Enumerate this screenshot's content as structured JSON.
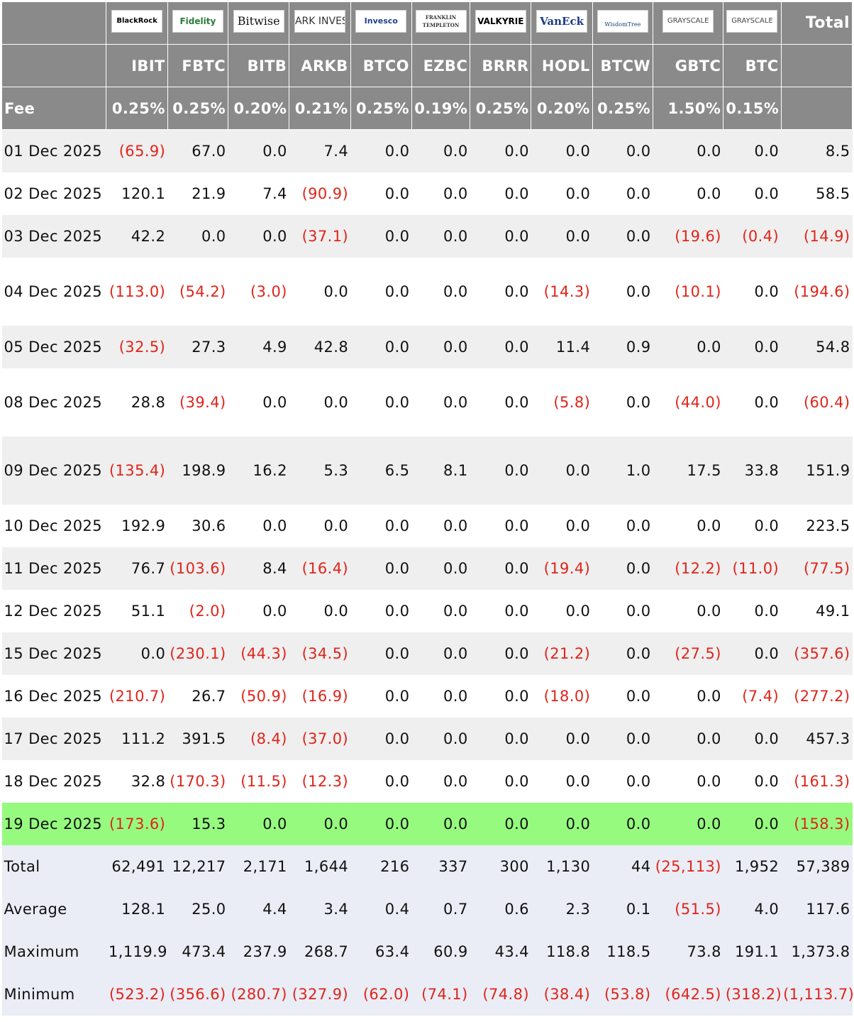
{
  "header": {
    "logos": [
      "BlackRock",
      "Fidelity",
      "Bitwise",
      "ARK INVEST",
      "Invesco",
      "FRANKLIN TEMPLETON",
      "VALKYRIE",
      "VanEck",
      "WisdomTree",
      "GRAYSCALE",
      "GRAYSCALE"
    ],
    "total_label": "Total",
    "tickers": [
      "IBIT",
      "FBTC",
      "BITB",
      "ARKB",
      "BTCO",
      "EZBC",
      "BRRR",
      "HODL",
      "BTCW",
      "GBTC",
      "BTC"
    ],
    "fee_label": "Fee",
    "fees": [
      "0.25%",
      "0.25%",
      "0.20%",
      "0.21%",
      "0.25%",
      "0.19%",
      "0.25%",
      "0.20%",
      "0.25%",
      "1.50%",
      "0.15%"
    ]
  },
  "rows": [
    {
      "date": "01 Dec 2025",
      "values": [
        "(65.9)",
        "67.0",
        "0.0",
        "7.4",
        "0.0",
        "0.0",
        "0.0",
        "0.0",
        "0.0",
        "0.0",
        "0.0",
        "8.5"
      ]
    },
    {
      "date": "02 Dec 2025",
      "values": [
        "120.1",
        "21.9",
        "7.4",
        "(90.9)",
        "0.0",
        "0.0",
        "0.0",
        "0.0",
        "0.0",
        "0.0",
        "0.0",
        "58.5"
      ]
    },
    {
      "date": "03 Dec 2025",
      "values": [
        "42.2",
        "0.0",
        "0.0",
        "(37.1)",
        "0.0",
        "0.0",
        "0.0",
        "0.0",
        "0.0",
        "(19.6)",
        "(0.4)",
        "(14.9)"
      ]
    },
    {
      "date": "04 Dec 2025",
      "values": [
        "(113.0)",
        "(54.2)",
        "(3.0)",
        "0.0",
        "0.0",
        "0.0",
        "0.0",
        "(14.3)",
        "0.0",
        "(10.1)",
        "0.0",
        "(194.6)"
      ]
    },
    {
      "date": "05 Dec 2025",
      "values": [
        "(32.5)",
        "27.3",
        "4.9",
        "42.8",
        "0.0",
        "0.0",
        "0.0",
        "11.4",
        "0.9",
        "0.0",
        "0.0",
        "54.8"
      ]
    },
    {
      "date": "08 Dec 2025",
      "values": [
        "28.8",
        "(39.4)",
        "0.0",
        "0.0",
        "0.0",
        "0.0",
        "0.0",
        "(5.8)",
        "0.0",
        "(44.0)",
        "0.0",
        "(60.4)"
      ]
    },
    {
      "date": "09 Dec 2025",
      "values": [
        "(135.4)",
        "198.9",
        "16.2",
        "5.3",
        "6.5",
        "8.1",
        "0.0",
        "0.0",
        "1.0",
        "17.5",
        "33.8",
        "151.9"
      ]
    },
    {
      "date": "10 Dec 2025",
      "values": [
        "192.9",
        "30.6",
        "0.0",
        "0.0",
        "0.0",
        "0.0",
        "0.0",
        "0.0",
        "0.0",
        "0.0",
        "0.0",
        "223.5"
      ]
    },
    {
      "date": "11 Dec 2025",
      "values": [
        "76.7",
        "(103.6)",
        "8.4",
        "(16.4)",
        "0.0",
        "0.0",
        "0.0",
        "(19.4)",
        "0.0",
        "(12.2)",
        "(11.0)",
        "(77.5)"
      ]
    },
    {
      "date": "12 Dec 2025",
      "values": [
        "51.1",
        "(2.0)",
        "0.0",
        "0.0",
        "0.0",
        "0.0",
        "0.0",
        "0.0",
        "0.0",
        "0.0",
        "0.0",
        "49.1"
      ]
    },
    {
      "date": "15 Dec 2025",
      "values": [
        "0.0",
        "(230.1)",
        "(44.3)",
        "(34.5)",
        "0.0",
        "0.0",
        "0.0",
        "(21.2)",
        "0.0",
        "(27.5)",
        "0.0",
        "(357.6)"
      ]
    },
    {
      "date": "16 Dec 2025",
      "values": [
        "(210.7)",
        "26.7",
        "(50.9)",
        "(16.9)",
        "0.0",
        "0.0",
        "0.0",
        "(18.0)",
        "0.0",
        "0.0",
        "(7.4)",
        "(277.2)"
      ]
    },
    {
      "date": "17 Dec 2025",
      "values": [
        "111.2",
        "391.5",
        "(8.4)",
        "(37.0)",
        "0.0",
        "0.0",
        "0.0",
        "0.0",
        "0.0",
        "0.0",
        "0.0",
        "457.3"
      ]
    },
    {
      "date": "18 Dec 2025",
      "values": [
        "32.8",
        "(170.3)",
        "(11.5)",
        "(12.3)",
        "0.0",
        "0.0",
        "0.0",
        "0.0",
        "0.0",
        "0.0",
        "0.0",
        "(161.3)"
      ]
    },
    {
      "date": "19 Dec 2025",
      "values": [
        "(173.6)",
        "15.3",
        "0.0",
        "0.0",
        "0.0",
        "0.0",
        "0.0",
        "0.0",
        "0.0",
        "0.0",
        "0.0",
        "(158.3)"
      ]
    }
  ],
  "summary": [
    {
      "label": "Total",
      "values": [
        "62,491",
        "12,217",
        "2,171",
        "1,644",
        "216",
        "337",
        "300",
        "1,130",
        "44",
        "(25,113)",
        "1,952",
        "57,389"
      ]
    },
    {
      "label": "Average",
      "values": [
        "128.1",
        "25.0",
        "4.4",
        "3.4",
        "0.4",
        "0.7",
        "0.6",
        "2.3",
        "0.1",
        "(51.5)",
        "4.0",
        "117.6"
      ]
    },
    {
      "label": "Maximum",
      "values": [
        "1,119.9",
        "473.4",
        "237.9",
        "268.7",
        "63.4",
        "60.9",
        "43.4",
        "118.8",
        "118.5",
        "73.8",
        "191.1",
        "1,373.8"
      ]
    },
    {
      "label": "Minimum",
      "values": [
        "(523.2)",
        "(356.6)",
        "(280.7)",
        "(327.9)",
        "(62.0)",
        "(74.1)",
        "(74.8)",
        "(38.4)",
        "(53.8)",
        "(642.5)",
        "(318.2)",
        "(1,113.7)"
      ]
    }
  ],
  "colors": {
    "header_bg": "#8a8a8a",
    "header_text": "#ffffff",
    "row_alt": "#efefef",
    "highlight": "#96fa7f",
    "summary_bg": "#eaedf5",
    "negative": "#e0241a"
  }
}
